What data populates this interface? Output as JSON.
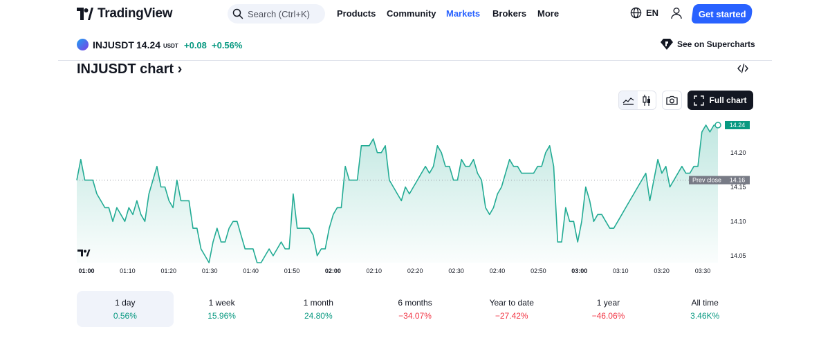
{
  "header": {
    "brand": "TradingView",
    "search_placeholder": "Search (Ctrl+K)",
    "nav": [
      "Products",
      "Community",
      "Markets",
      "Brokers",
      "More"
    ],
    "active_nav": "Markets",
    "language": "EN",
    "cta": "Get started"
  },
  "ticker": {
    "symbol": "INJUSDT",
    "price": "14.24",
    "currency": "USDT",
    "change": "+0.08",
    "change_pct": "+0.56%",
    "supercharts_link": "See on Supercharts"
  },
  "chart_section": {
    "title": "INJUSDT chart",
    "full_chart": "Full chart"
  },
  "chart_data": {
    "type": "area",
    "x_ticks": [
      "01:00",
      "01:10",
      "01:20",
      "01:30",
      "01:40",
      "01:50",
      "02:00",
      "02:10",
      "02:20",
      "02:30",
      "02:40",
      "02:50",
      "03:00",
      "03:10",
      "03:20",
      "03:30"
    ],
    "bold_ticks": [
      "01:00",
      "02:00",
      "03:00"
    ],
    "y_ticks": [
      "14.05",
      "14.10",
      "14.15",
      "14.20"
    ],
    "ylim": [
      14.04,
      14.245
    ],
    "prev_close_label": "Prev close",
    "prev_close": 14.16,
    "last_price": 14.24,
    "last_price_label": "14.24",
    "prev_close_value_label": "14.16",
    "line_color": "#22ab94",
    "values": [
      14.16,
      14.19,
      14.16,
      14.16,
      14.16,
      14.14,
      14.13,
      14.12,
      14.12,
      14.1,
      14.12,
      14.11,
      14.1,
      14.12,
      14.11,
      14.13,
      14.11,
      14.1,
      14.14,
      14.16,
      14.18,
      14.15,
      14.15,
      14.13,
      14.12,
      14.16,
      14.13,
      14.13,
      14.13,
      14.09,
      14.09,
      14.06,
      14.05,
      14.04,
      14.07,
      14.09,
      14.07,
      14.07,
      14.09,
      14.1,
      14.1,
      14.08,
      14.06,
      14.06,
      14.06,
      14.04,
      14.04,
      14.05,
      14.06,
      14.05,
      14.06,
      14.07,
      14.06,
      14.06,
      14.14,
      14.09,
      14.09,
      14.09,
      14.09,
      14.08,
      14.05,
      14.06,
      14.06,
      14.09,
      14.11,
      14.12,
      14.12,
      14.18,
      14.16,
      14.16,
      14.16,
      14.21,
      14.21,
      14.21,
      14.22,
      14.2,
      14.2,
      14.21,
      14.16,
      14.15,
      14.14,
      14.13,
      14.15,
      14.14,
      14.15,
      14.16,
      14.17,
      14.18,
      14.17,
      14.18,
      14.21,
      14.2,
      14.18,
      14.18,
      14.16,
      14.16,
      14.19,
      14.18,
      14.18,
      14.19,
      14.17,
      14.16,
      14.12,
      14.11,
      14.12,
      14.14,
      14.15,
      14.17,
      14.19,
      14.18,
      14.18,
      14.17,
      14.17,
      14.17,
      14.17,
      14.18,
      14.18,
      14.2,
      14.21,
      14.18,
      14.07,
      14.07,
      14.12,
      14.1,
      14.1,
      14.07,
      14.1,
      14.15,
      14.13,
      14.1,
      14.11,
      14.11,
      14.1,
      14.09,
      14.09,
      14.1,
      14.11,
      14.12,
      14.13,
      14.14,
      14.15,
      14.16,
      14.17,
      14.13,
      14.16,
      14.19,
      14.17,
      14.18,
      14.15,
      14.16,
      14.17,
      14.18,
      14.17,
      14.17,
      14.18,
      14.18,
      14.23,
      14.24,
      14.23,
      14.24,
      14.24
    ]
  },
  "periods": [
    {
      "label": "1 day",
      "value": "0.56%",
      "trend": "pos",
      "active": true
    },
    {
      "label": "1 week",
      "value": "15.96%",
      "trend": "pos",
      "active": false
    },
    {
      "label": "1 month",
      "value": "24.80%",
      "trend": "pos",
      "active": false
    },
    {
      "label": "6 months",
      "value": "−34.07%",
      "trend": "neg",
      "active": false
    },
    {
      "label": "Year to date",
      "value": "−27.42%",
      "trend": "neg",
      "active": false
    },
    {
      "label": "1 year",
      "value": "−46.06%",
      "trend": "neg",
      "active": false
    },
    {
      "label": "All time",
      "value": "3.46K%",
      "trend": "pos",
      "active": false
    }
  ]
}
